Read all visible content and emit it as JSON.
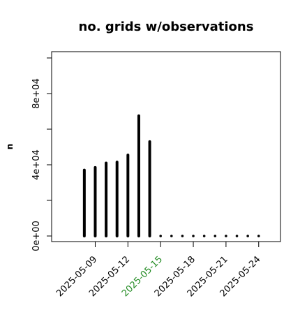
{
  "chart_data": {
    "type": "bar",
    "title": "no. grids w/observations",
    "xlabel": "",
    "ylabel": "n",
    "ylim": [
      0,
      100000
    ],
    "y_ticks": [
      {
        "value": 0,
        "label": "0e+00"
      },
      {
        "value": 20000,
        "label": ""
      },
      {
        "value": 40000,
        "label": "4e+04"
      },
      {
        "value": 60000,
        "label": ""
      },
      {
        "value": 80000,
        "label": "8e+04"
      },
      {
        "value": 100000,
        "label": ""
      }
    ],
    "x_tick_labels": [
      {
        "date": "2025-05-09",
        "label": "2025-05-09",
        "color": "#000000"
      },
      {
        "date": "2025-05-12",
        "label": "2025-05-12",
        "color": "#000000"
      },
      {
        "date": "2025-05-15",
        "label": "2025-05-15",
        "color": "#228B22"
      },
      {
        "date": "2025-05-18",
        "label": "2025-05-18",
        "color": "#000000"
      },
      {
        "date": "2025-05-21",
        "label": "2025-05-21",
        "color": "#000000"
      },
      {
        "date": "2025-05-24",
        "label": "2025-05-24",
        "color": "#000000"
      }
    ],
    "x_minor_ticks": [
      "2025-05-09",
      "2025-05-12",
      "2025-05-15",
      "2025-05-18",
      "2025-05-21",
      "2025-05-24"
    ],
    "x_range": [
      "2025-05-05",
      "2025-05-26"
    ],
    "dates": [
      "2025-05-08",
      "2025-05-09",
      "2025-05-10",
      "2025-05-11",
      "2025-05-12",
      "2025-05-13",
      "2025-05-14",
      "2025-05-15",
      "2025-05-16",
      "2025-05-17",
      "2025-05-18",
      "2025-05-19",
      "2025-05-20",
      "2025-05-21",
      "2025-05-22",
      "2025-05-23",
      "2025-05-24"
    ],
    "values": [
      37000,
      38500,
      41000,
      41500,
      45500,
      67500,
      53000,
      0,
      0,
      0,
      0,
      0,
      0,
      0,
      0,
      0,
      0
    ],
    "bar_color": "#000000",
    "grid": false,
    "legend": "none"
  }
}
